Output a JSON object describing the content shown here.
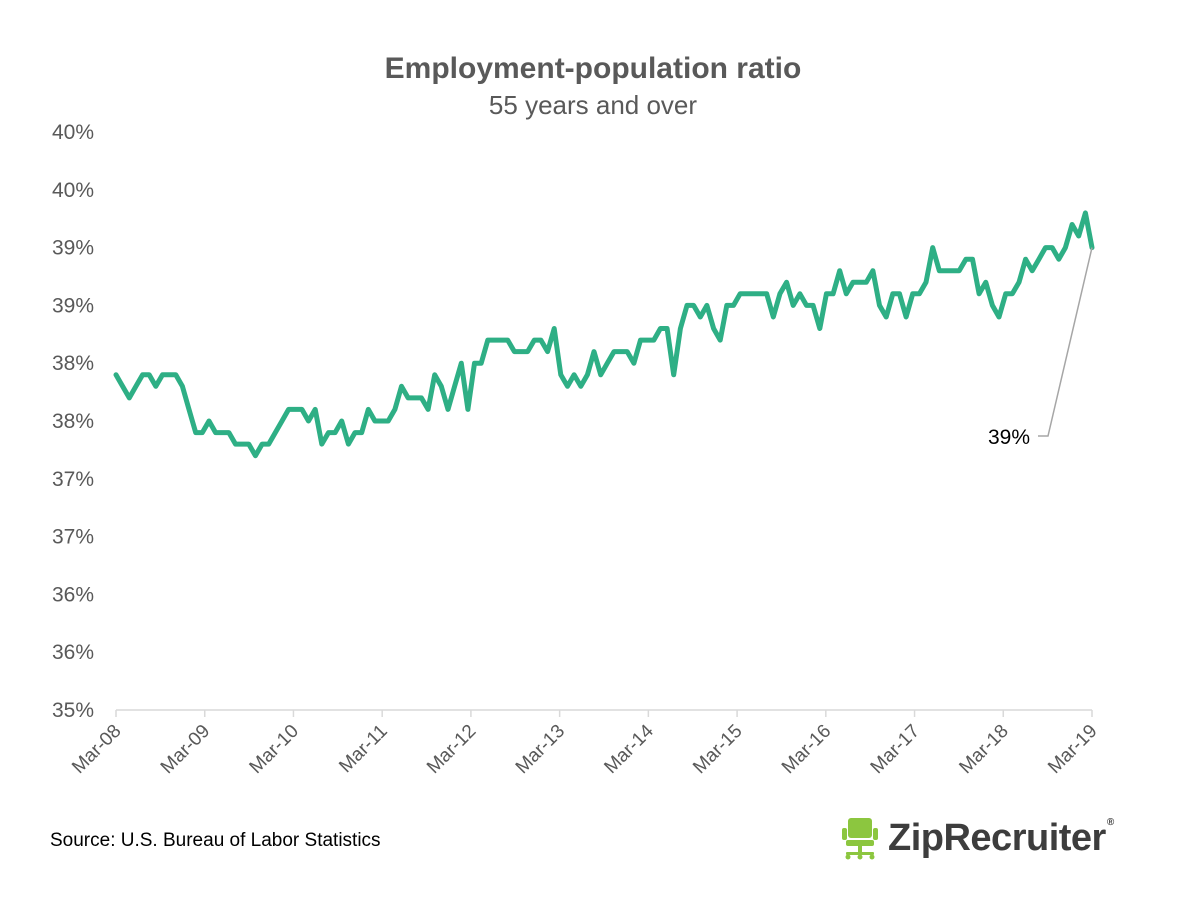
{
  "colors": {
    "line": "#2eaf85",
    "axis_text": "#595959",
    "brand": "#8cc63f",
    "leader": "#a6a6a6"
  },
  "source_text": "Source: U.S. Bureau of Labor Statistics",
  "logo": {
    "text": "ZipRecruiter",
    "reg": "®",
    "icon": "chair-icon"
  },
  "chart_data": {
    "type": "line",
    "title": "Employment-population ratio",
    "subtitle": "55 years and over",
    "xlabel": "",
    "ylabel": "",
    "ylim": [
      35.0,
      40.0
    ],
    "y_ticks": [
      35.0,
      35.5,
      36.0,
      36.5,
      37.0,
      37.5,
      38.0,
      38.5,
      39.0,
      39.5,
      40.0
    ],
    "y_tick_labels": [
      "35%",
      "36%",
      "36%",
      "37%",
      "37%",
      "38%",
      "38%",
      "39%",
      "39%",
      "40%",
      "40%"
    ],
    "x_start": "2008-03",
    "x_end": "2019-03",
    "x_tick_labels": [
      "Mar-08",
      "Mar-09",
      "Mar-10",
      "Mar-11",
      "Mar-12",
      "Mar-13",
      "Mar-14",
      "Mar-15",
      "Mar-16",
      "Mar-17",
      "Mar-18",
      "Mar-19"
    ],
    "grid": false,
    "legend": "none",
    "annotation": {
      "text": "39%",
      "target": "last"
    },
    "series": [
      {
        "values": [
          37.9,
          37.8,
          37.7,
          37.8,
          37.9,
          37.9,
          37.8,
          37.9,
          37.9,
          37.9,
          37.8,
          37.6,
          37.4,
          37.4,
          37.5,
          37.4,
          37.4,
          37.4,
          37.3,
          37.3,
          37.3,
          37.2,
          37.3,
          37.3,
          37.4,
          37.5,
          37.6,
          37.6,
          37.6,
          37.5,
          37.6,
          37.3,
          37.4,
          37.4,
          37.5,
          37.3,
          37.4,
          37.4,
          37.6,
          37.5,
          37.5,
          37.5,
          37.6,
          37.8,
          37.7,
          37.7,
          37.7,
          37.6,
          37.9,
          37.8,
          37.6,
          37.8,
          38.0,
          37.6,
          38.0,
          38.0,
          38.2,
          38.2,
          38.2,
          38.2,
          38.1,
          38.1,
          38.1,
          38.2,
          38.2,
          38.1,
          38.3,
          37.9,
          37.8,
          37.9,
          37.8,
          37.9,
          38.1,
          37.9,
          38.0,
          38.1,
          38.1,
          38.1,
          38.0,
          38.2,
          38.2,
          38.2,
          38.3,
          38.3,
          37.9,
          38.3,
          38.5,
          38.5,
          38.4,
          38.5,
          38.3,
          38.2,
          38.5,
          38.5,
          38.6,
          38.6,
          38.6,
          38.6,
          38.6,
          38.4,
          38.6,
          38.7,
          38.5,
          38.6,
          38.5,
          38.5,
          38.3,
          38.6,
          38.6,
          38.8,
          38.6,
          38.7,
          38.7,
          38.7,
          38.8,
          38.5,
          38.4,
          38.6,
          38.6,
          38.4,
          38.6,
          38.6,
          38.7,
          39.0,
          38.8,
          38.8,
          38.8,
          38.8,
          38.9,
          38.9,
          38.6,
          38.7,
          38.5,
          38.4,
          38.6,
          38.6,
          38.7,
          38.9,
          38.8,
          38.9,
          39.0,
          39.0,
          38.9,
          39.0,
          39.2,
          39.1,
          39.3,
          39.0
        ]
      }
    ]
  }
}
